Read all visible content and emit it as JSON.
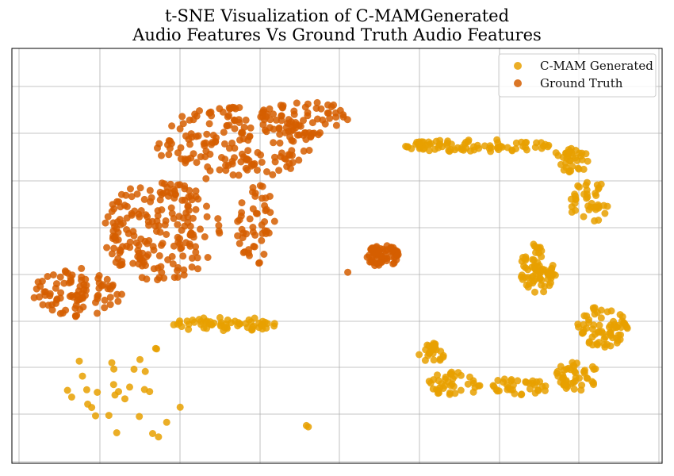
{
  "chart_data": {
    "type": "scatter",
    "title_line1": "t-SNE Visualization of C-MAMGenerated",
    "title_line2": "Audio Features Vs Ground Truth Audio Features",
    "xlabel": "",
    "ylabel": "",
    "xlim": [
      0,
      100
    ],
    "ylim": [
      0,
      100
    ],
    "grid": true,
    "ticks_labeled": false,
    "legend_position": "top-right",
    "series": [
      {
        "name": "C-MAM Generated",
        "color": "#E8A000",
        "clusters": [
          {
            "cx": 72.0,
            "cy": 76.5,
            "rx": 12.0,
            "ry": 1.6,
            "n": 80
          },
          {
            "cx": 86.0,
            "cy": 73.0,
            "rx": 3.0,
            "ry": 3.0,
            "n": 35
          },
          {
            "cx": 89.0,
            "cy": 63.0,
            "rx": 4.0,
            "ry": 5.0,
            "n": 40
          },
          {
            "cx": 81.0,
            "cy": 47.0,
            "rx": 3.0,
            "ry": 6.0,
            "n": 70
          },
          {
            "cx": 91.0,
            "cy": 33.0,
            "rx": 4.0,
            "ry": 5.0,
            "n": 70
          },
          {
            "cx": 87.0,
            "cy": 21.0,
            "rx": 3.5,
            "ry": 3.5,
            "n": 45
          },
          {
            "cx": 78.0,
            "cy": 18.5,
            "rx": 5.0,
            "ry": 2.0,
            "n": 35
          },
          {
            "cx": 68.0,
            "cy": 19.0,
            "rx": 4.0,
            "ry": 3.0,
            "n": 40
          },
          {
            "cx": 64.5,
            "cy": 26.5,
            "rx": 2.0,
            "ry": 2.5,
            "n": 25
          },
          {
            "cx": 33.0,
            "cy": 33.5,
            "rx": 8.5,
            "ry": 1.8,
            "n": 60
          },
          {
            "cx": 18.0,
            "cy": 17.0,
            "rx": 10.0,
            "ry": 12.0,
            "n": 30
          },
          {
            "cx": 45.5,
            "cy": 9.0,
            "rx": 0.3,
            "ry": 0.3,
            "n": 2
          }
        ]
      },
      {
        "name": "Ground Truth",
        "color": "#D55E00",
        "clusters": [
          {
            "cx": 10.0,
            "cy": 41.0,
            "rx": 7.0,
            "ry": 6.0,
            "n": 90
          },
          {
            "cx": 23.0,
            "cy": 56.0,
            "rx": 9.0,
            "ry": 12.0,
            "n": 200
          },
          {
            "cx": 34.0,
            "cy": 77.0,
            "rx": 12.0,
            "ry": 9.0,
            "n": 170
          },
          {
            "cx": 45.0,
            "cy": 83.0,
            "rx": 7.0,
            "ry": 4.5,
            "n": 60
          },
          {
            "cx": 37.5,
            "cy": 58.0,
            "rx": 3.0,
            "ry": 10.0,
            "n": 50
          },
          {
            "cx": 57.0,
            "cy": 50.0,
            "rx": 2.6,
            "ry": 2.6,
            "n": 60
          },
          {
            "cx": 51.5,
            "cy": 46.0,
            "rx": 0.2,
            "ry": 0.2,
            "n": 1
          }
        ]
      }
    ]
  }
}
